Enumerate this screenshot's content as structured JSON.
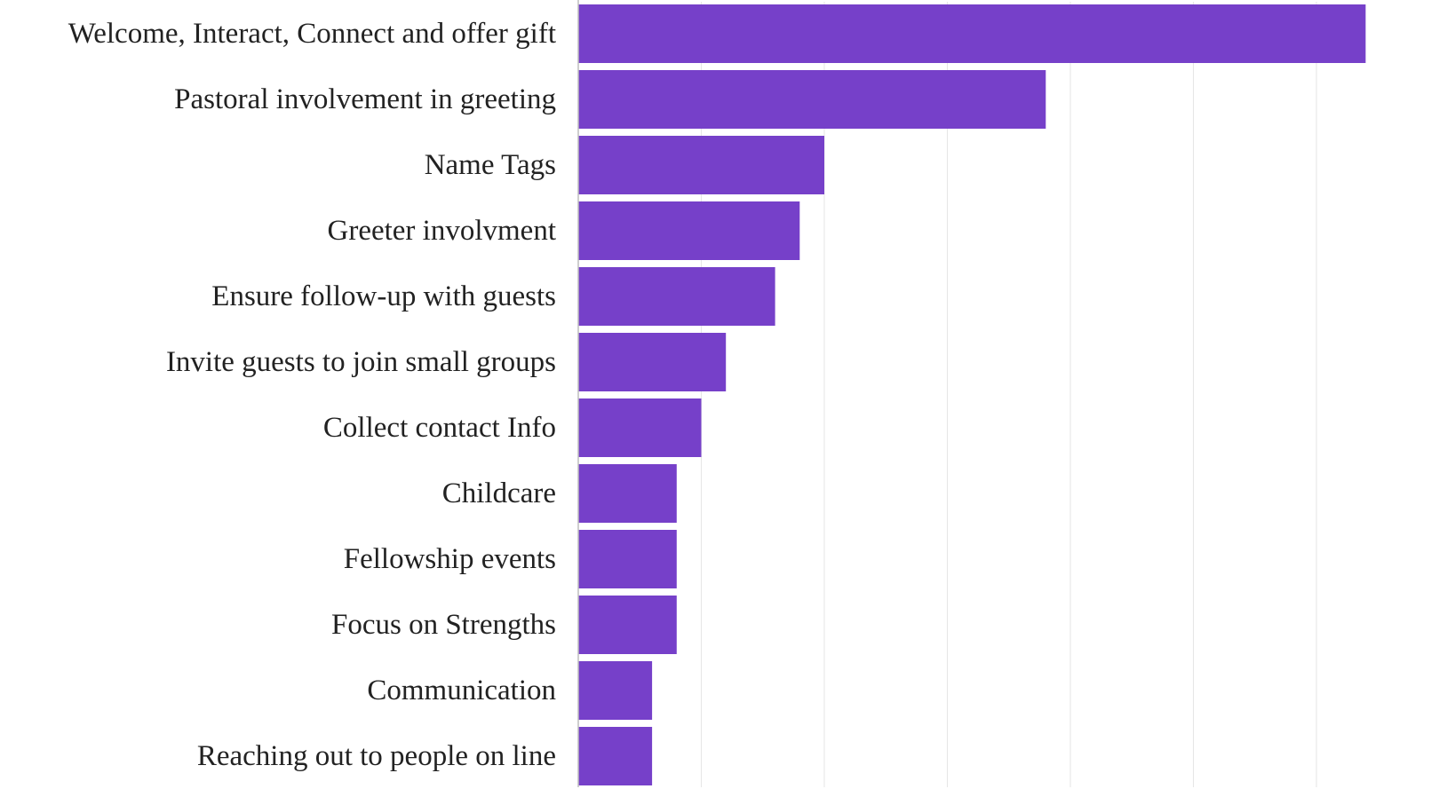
{
  "chart_data": {
    "type": "bar",
    "orientation": "horizontal",
    "title": "",
    "xlabel": "",
    "ylabel": "",
    "categories": [
      "Welcome, Interact, Connect and offer gift",
      "Pastoral involvement in greeting",
      "Name Tags",
      "Greeter involvment",
      "Ensure follow-up with guests",
      "Invite guests to join small groups",
      "Collect contact Info",
      "Childcare",
      "Fellowship events",
      "Focus on Strengths",
      "Communication",
      "Reaching out to people on line"
    ],
    "values": [
      32,
      19,
      10,
      9,
      8,
      6,
      5,
      4,
      4,
      4,
      3,
      3
    ],
    "xlim": [
      0,
      34.5
    ],
    "grid": true,
    "legend": "none",
    "bar_color": "#7640C9",
    "x_tick_labels_visible": false
  }
}
